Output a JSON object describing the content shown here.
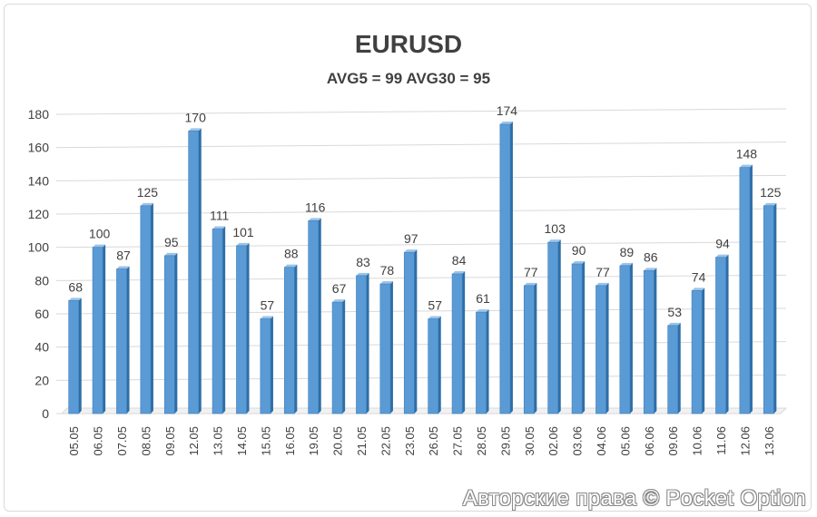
{
  "chart_data": {
    "type": "bar",
    "title": "EURUSD",
    "subtitle": "AVG5 = 99 AVG30 = 95",
    "categories": [
      "05.05",
      "06.05",
      "07.05",
      "08.05",
      "09.05",
      "12.05",
      "13.05",
      "14.05",
      "15.05",
      "16.05",
      "19.05",
      "20.05",
      "21.05",
      "22.05",
      "23.05",
      "26.05",
      "27.05",
      "28.05",
      "29.05",
      "30.05",
      "02.06",
      "03.06",
      "04.06",
      "05.06",
      "06.06",
      "09.06",
      "10.06",
      "11.06",
      "12.06",
      "13.06"
    ],
    "values": [
      68,
      100,
      87,
      125,
      95,
      170,
      111,
      101,
      57,
      88,
      116,
      67,
      83,
      78,
      97,
      57,
      84,
      61,
      174,
      77,
      103,
      90,
      77,
      89,
      86,
      53,
      74,
      94,
      148,
      125
    ],
    "yticks": [
      0,
      20,
      40,
      60,
      80,
      100,
      120,
      140,
      160,
      180
    ],
    "ylim": [
      0,
      180
    ],
    "xlabel": "",
    "ylabel": "",
    "grid": true,
    "colors": {
      "bar_front": "#5b9bd5",
      "bar_side": "#2e6ea6",
      "bar_top": "#9cc3e8",
      "grid": "#d9d9d9",
      "text": "#404040"
    }
  },
  "watermark": "Авторские права © Pocket Option"
}
